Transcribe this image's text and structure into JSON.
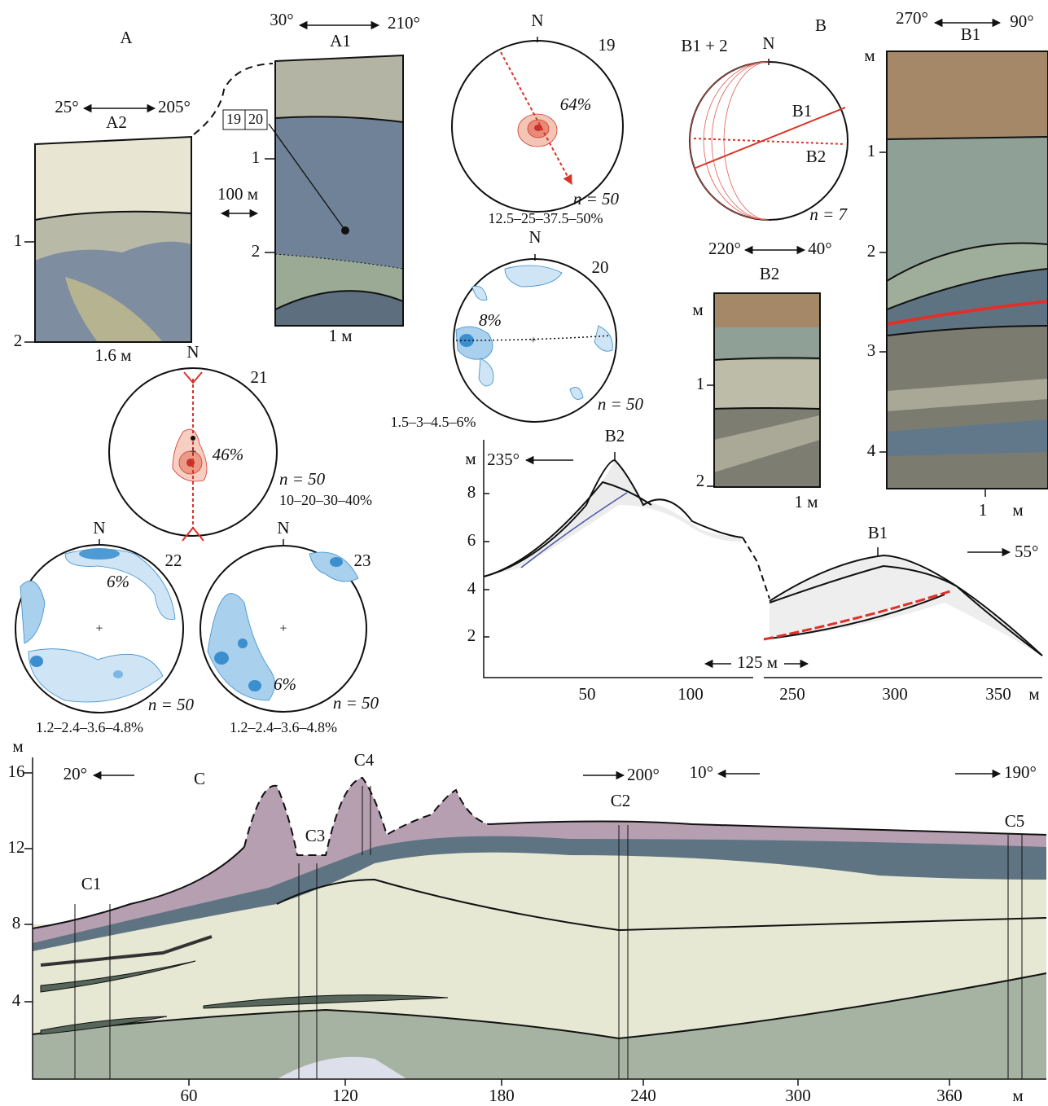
{
  "panel_a": {
    "label": "A",
    "distance": "100 м",
    "a2": {
      "label": "A2",
      "azimuth_left": "25°",
      "azimuth_right": "205°",
      "depth_ticks": [
        1,
        2
      ],
      "width": "1.6 м"
    },
    "a1": {
      "label": "A1",
      "azimuth_left": "30°",
      "azimuth_right": "210°",
      "depth_ticks": [
        1,
        2
      ],
      "width": "1 м",
      "samples": [
        19,
        20
      ]
    }
  },
  "stereonets": [
    {
      "number": 19,
      "north": "N",
      "max": "64%",
      "n": "n = 50",
      "contours": "12.5–25–37.5–50%"
    },
    {
      "number": 20,
      "north": "N",
      "max": "8%",
      "n": "n = 50",
      "contours": "1.5–3–4.5–6%"
    },
    {
      "number": 21,
      "north": "N",
      "max": "46%",
      "n": "n = 50",
      "contours": "10–20–30–40%"
    },
    {
      "number": 22,
      "north": "N",
      "max": "6%",
      "n": "n = 50",
      "contours": "1.2–2.4–3.6–4.8%"
    },
    {
      "number": 23,
      "north": "N",
      "max": "6%",
      "n": "n = 50",
      "contours": "1.2–2.4–3.6–4.8%"
    }
  ],
  "panel_b": {
    "label": "B",
    "stereonet": {
      "title": "B1 + 2",
      "north": "N",
      "line_1": "B1",
      "line_2": "B2",
      "n": "n = 7"
    },
    "b2": {
      "label": "B2",
      "azimuth_left": "220°",
      "azimuth_right": "40°",
      "unit": "м",
      "depth_ticks": [
        1,
        2
      ],
      "width": "1 м"
    },
    "b1": {
      "label": "B1",
      "azimuth_left": "270°",
      "azimuth_right": "90°",
      "unit": "м",
      "depth_ticks": [
        1,
        2,
        3,
        4
      ],
      "width": 1,
      "width_unit": "м"
    }
  },
  "profile_b": {
    "y_unit": "м",
    "yticks": [
      2,
      4,
      6,
      8
    ],
    "xticks": [
      50,
      100,
      250,
      300,
      350
    ],
    "x_unit": "м",
    "gap": "125 м",
    "azimuth_left": "235°",
    "azimuth_right": "55°",
    "sites": [
      "B2",
      "B1"
    ]
  },
  "section_c": {
    "label": "C",
    "y_unit": "м",
    "yticks": [
      4,
      8,
      12,
      16
    ],
    "xticks": [
      60,
      120,
      180,
      240,
      300,
      360
    ],
    "x_unit": "м",
    "azimuths": [
      "20°",
      "200°",
      "10°",
      "190°"
    ],
    "sites": [
      "C1",
      "C2",
      "C3",
      "C4",
      "C5"
    ]
  }
}
